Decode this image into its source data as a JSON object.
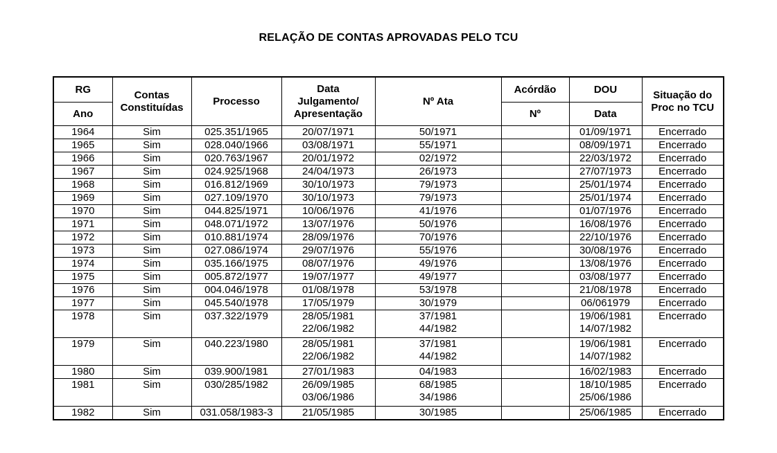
{
  "title": "RELAÇÃO DE CONTAS APROVADAS PELO TCU",
  "table": {
    "header": {
      "rg": "RG",
      "ano": "Ano",
      "contas": [
        "Contas",
        "Constituídas"
      ],
      "processo": "Processo",
      "data_julgamento": [
        "Data",
        "Julgamento/",
        "Apresentação"
      ],
      "num_ata": "Nº Ata",
      "acordao": "Acórdão",
      "acordao_num": "Nº",
      "dou": "DOU",
      "dou_data": "Data",
      "situacao": [
        "Situação do",
        "Proc no TCU"
      ]
    },
    "rows": [
      {
        "ano": "1964",
        "contas": "Sim",
        "processo": "025.351/1965",
        "data_julgamento": [
          "20/07/1971"
        ],
        "num_ata": [
          "50/1971"
        ],
        "acordao_num": "",
        "dou_data": [
          "01/09/1971"
        ],
        "situacao": "Encerrado"
      },
      {
        "ano": "1965",
        "contas": "Sim",
        "processo": "028.040/1966",
        "data_julgamento": [
          "03/08/1971"
        ],
        "num_ata": [
          "55/1971"
        ],
        "acordao_num": "",
        "dou_data": [
          "08/09/1971"
        ],
        "situacao": "Encerrado"
      },
      {
        "ano": "1966",
        "contas": "Sim",
        "processo": "020.763/1967",
        "data_julgamento": [
          "20/01/1972"
        ],
        "num_ata": [
          "02/1972"
        ],
        "acordao_num": "",
        "dou_data": [
          "22/03/1972"
        ],
        "situacao": "Encerrado"
      },
      {
        "ano": "1967",
        "contas": "Sim",
        "processo": "024.925/1968",
        "data_julgamento": [
          "24/04/1973"
        ],
        "num_ata": [
          "26/1973"
        ],
        "acordao_num": "",
        "dou_data": [
          "27/07/1973"
        ],
        "situacao": "Encerrado"
      },
      {
        "ano": "1968",
        "contas": "Sim",
        "processo": "016.812/1969",
        "data_julgamento": [
          "30/10/1973"
        ],
        "num_ata": [
          "79/1973"
        ],
        "acordao_num": "",
        "dou_data": [
          "25/01/1974"
        ],
        "situacao": "Encerrado"
      },
      {
        "ano": "1969",
        "contas": "Sim",
        "processo": "027.109/1970",
        "data_julgamento": [
          "30/10/1973"
        ],
        "num_ata": [
          "79/1973"
        ],
        "acordao_num": "",
        "dou_data": [
          "25/01/1974"
        ],
        "situacao": "Encerrado"
      },
      {
        "ano": "1970",
        "contas": "Sim",
        "processo": "044.825/1971",
        "data_julgamento": [
          "10/06/1976"
        ],
        "num_ata": [
          "41/1976"
        ],
        "acordao_num": "",
        "dou_data": [
          "01/07/1976"
        ],
        "situacao": "Encerrado"
      },
      {
        "ano": "1971",
        "contas": "Sim",
        "processo": "048.071/1972",
        "data_julgamento": [
          "13/07/1976"
        ],
        "num_ata": [
          "50/1976"
        ],
        "acordao_num": "",
        "dou_data": [
          "16/08/1976"
        ],
        "situacao": "Encerrado"
      },
      {
        "ano": "1972",
        "contas": "Sim",
        "processo": "010.881/1974",
        "data_julgamento": [
          "28/09/1976"
        ],
        "num_ata": [
          "70/1976"
        ],
        "acordao_num": "",
        "dou_data": [
          "22/10/1976"
        ],
        "situacao": "Encerrado"
      },
      {
        "ano": "1973",
        "contas": "Sim",
        "processo": "027.086/1974",
        "data_julgamento": [
          "29/07/1976"
        ],
        "num_ata": [
          "55/1976"
        ],
        "acordao_num": "",
        "dou_data": [
          "30/08/1976"
        ],
        "situacao": "Encerrado"
      },
      {
        "ano": "1974",
        "contas": "Sim",
        "processo": "035.166/1975",
        "data_julgamento": [
          "08/07/1976"
        ],
        "num_ata": [
          "49/1976"
        ],
        "acordao_num": "",
        "dou_data": [
          "13/08/1976"
        ],
        "situacao": "Encerrado"
      },
      {
        "ano": "1975",
        "contas": "Sim",
        "processo": "005.872/1977",
        "data_julgamento": [
          "19/07/1977"
        ],
        "num_ata": [
          "49/1977"
        ],
        "acordao_num": "",
        "dou_data": [
          "03/08/1977"
        ],
        "situacao": "Encerrado"
      },
      {
        "ano": "1976",
        "contas": "Sim",
        "processo": "004.046/1978",
        "data_julgamento": [
          "01/08/1978"
        ],
        "num_ata": [
          "53/1978"
        ],
        "acordao_num": "",
        "dou_data": [
          "21/08/1978"
        ],
        "situacao": "Encerrado"
      },
      {
        "ano": "1977",
        "contas": "Sim",
        "processo": "045.540/1978",
        "data_julgamento": [
          "17/05/1979"
        ],
        "num_ata": [
          "30/1979"
        ],
        "acordao_num": "",
        "dou_data": [
          "06/061979"
        ],
        "situacao": "Encerrado"
      },
      {
        "ano": "1978",
        "contas": "Sim",
        "processo": "037.322/1979",
        "data_julgamento": [
          "28/05/1981",
          "22/06/1982"
        ],
        "num_ata": [
          "37/1981",
          "44/1982"
        ],
        "acordao_num": "",
        "dou_data": [
          "19/06/1981",
          "14/07/1982"
        ],
        "situacao": "Encerrado"
      },
      {
        "ano": "1979",
        "contas": "Sim",
        "processo": "040.223/1980",
        "data_julgamento": [
          "28/05/1981",
          "22/06/1982"
        ],
        "num_ata": [
          "37/1981",
          "44/1982"
        ],
        "acordao_num": "",
        "dou_data": [
          "19/06/1981",
          "14/07/1982"
        ],
        "situacao": "Encerrado"
      },
      {
        "ano": "1980",
        "contas": "Sim",
        "processo": "039.900/1981",
        "data_julgamento": [
          "27/01/1983"
        ],
        "num_ata": [
          "04/1983"
        ],
        "acordao_num": "",
        "dou_data": [
          "16/02/1983"
        ],
        "situacao": "Encerrado"
      },
      {
        "ano": "1981",
        "contas": "Sim",
        "processo": "030/285/1982",
        "data_julgamento": [
          "26/09/1985",
          "03/06/1986"
        ],
        "num_ata": [
          "68/1985",
          "34/1986"
        ],
        "acordao_num": "",
        "dou_data": [
          "18/10/1985",
          "25/06/1986"
        ],
        "situacao": "Encerrado"
      },
      {
        "ano": "1982",
        "contas": "Sim",
        "processo": "031.058/1983-3",
        "data_julgamento": [
          "21/05/1985"
        ],
        "num_ata": [
          "30/1985"
        ],
        "acordao_num": "",
        "dou_data": [
          "25/06/1985"
        ],
        "situacao": "Encerrado"
      }
    ]
  }
}
